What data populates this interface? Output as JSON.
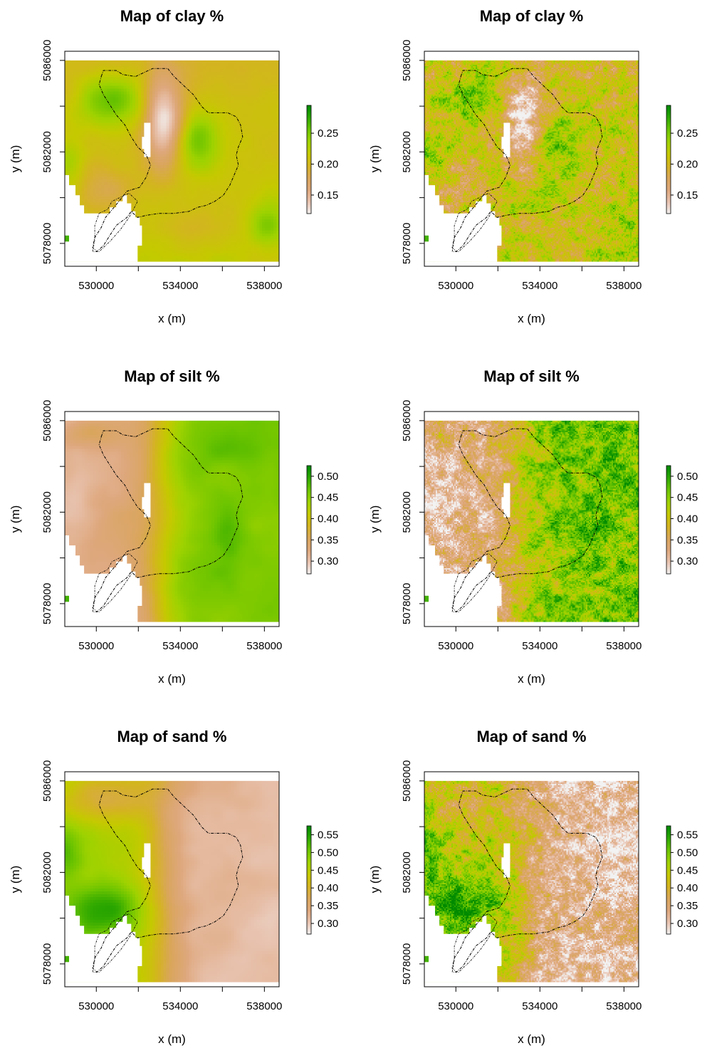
{
  "chart_data": [
    {
      "type": "heatmap",
      "title": "Map of clay %",
      "variable": "clay",
      "texture": "smooth",
      "xlabel": "x (m)",
      "ylabel": "y (m)",
      "xlim": [
        528500,
        538700
      ],
      "ylim": [
        5077000,
        5086400
      ],
      "xticks": [
        "530000",
        "534000",
        "538000"
      ],
      "yticks": [
        "5078000",
        "5082000",
        "5086000"
      ],
      "legend": {
        "placement": "right",
        "range": [
          0.12,
          0.295
        ],
        "ticks": [
          "0.15",
          "0.20",
          "0.25"
        ],
        "tick_values": [
          0.15,
          0.2,
          0.25
        ]
      },
      "grid": false
    },
    {
      "type": "heatmap",
      "title": "Map of clay %",
      "variable": "clay",
      "texture": "speckled",
      "xlabel": "x (m)",
      "ylabel": "y (m)",
      "xlim": [
        528500,
        538700
      ],
      "ylim": [
        5077000,
        5086400
      ],
      "xticks": [
        "530000",
        "534000",
        "538000"
      ],
      "yticks": [
        "5078000",
        "5082000",
        "5086000"
      ],
      "legend": {
        "placement": "right",
        "range": [
          0.12,
          0.295
        ],
        "ticks": [
          "0.15",
          "0.20",
          "0.25"
        ],
        "tick_values": [
          0.15,
          0.2,
          0.25
        ]
      },
      "grid": false
    },
    {
      "type": "heatmap",
      "title": "Map of silt %",
      "variable": "silt",
      "texture": "smooth",
      "xlabel": "x (m)",
      "ylabel": "y (m)",
      "xlim": [
        528500,
        538700
      ],
      "ylim": [
        5077000,
        5086400
      ],
      "xticks": [
        "530000",
        "534000",
        "538000"
      ],
      "yticks": [
        "5078000",
        "5082000",
        "5086000"
      ],
      "legend": {
        "placement": "right",
        "range": [
          0.27,
          0.525
        ],
        "ticks": [
          "0.30",
          "0.35",
          "0.40",
          "0.45",
          "0.50"
        ],
        "tick_values": [
          0.3,
          0.35,
          0.4,
          0.45,
          0.5
        ]
      },
      "grid": false
    },
    {
      "type": "heatmap",
      "title": "Map of silt %",
      "variable": "silt",
      "texture": "speckled",
      "xlabel": "x (m)",
      "ylabel": "y (m)",
      "xlim": [
        528500,
        538700
      ],
      "ylim": [
        5077000,
        5086400
      ],
      "xticks": [
        "530000",
        "534000",
        "538000"
      ],
      "yticks": [
        "5078000",
        "5082000",
        "5086000"
      ],
      "legend": {
        "placement": "right",
        "range": [
          0.27,
          0.525
        ],
        "ticks": [
          "0.30",
          "0.35",
          "0.40",
          "0.45",
          "0.50"
        ],
        "tick_values": [
          0.3,
          0.35,
          0.4,
          0.45,
          0.5
        ]
      },
      "grid": false
    },
    {
      "type": "heatmap",
      "title": "Map of sand %",
      "variable": "sand",
      "texture": "smooth",
      "xlabel": "x (m)",
      "ylabel": "y (m)",
      "xlim": [
        528500,
        538700
      ],
      "ylim": [
        5077000,
        5086400
      ],
      "xticks": [
        "530000",
        "534000",
        "538000"
      ],
      "yticks": [
        "5078000",
        "5082000",
        "5086000"
      ],
      "legend": {
        "placement": "right",
        "range": [
          0.27,
          0.575
        ],
        "ticks": [
          "0.30",
          "0.35",
          "0.40",
          "0.45",
          "0.50",
          "0.55"
        ],
        "tick_values": [
          0.3,
          0.35,
          0.4,
          0.45,
          0.5,
          0.55
        ]
      },
      "grid": false
    },
    {
      "type": "heatmap",
      "title": "Map of sand %",
      "variable": "sand",
      "texture": "speckled",
      "xlabel": "x (m)",
      "ylabel": "y (m)",
      "xlim": [
        528500,
        538700
      ],
      "ylim": [
        5077000,
        5086400
      ],
      "xticks": [
        "530000",
        "534000",
        "538000"
      ],
      "yticks": [
        "5078000",
        "5082000",
        "5086000"
      ],
      "legend": {
        "placement": "right",
        "range": [
          0.27,
          0.575
        ],
        "ticks": [
          "0.30",
          "0.35",
          "0.40",
          "0.45",
          "0.50",
          "0.55"
        ],
        "tick_values": [
          0.3,
          0.35,
          0.4,
          0.45,
          0.5,
          0.55
        ]
      },
      "grid": false
    }
  ],
  "colors": {
    "palette": [
      "#f2f2f2",
      "#e8c3b0",
      "#dea77c",
      "#d9a65a",
      "#d4b322",
      "#c5c900",
      "#9fd200",
      "#6cc400",
      "#2ea800",
      "#008a00"
    ],
    "outline": "#000000",
    "background": "#ffffff"
  }
}
